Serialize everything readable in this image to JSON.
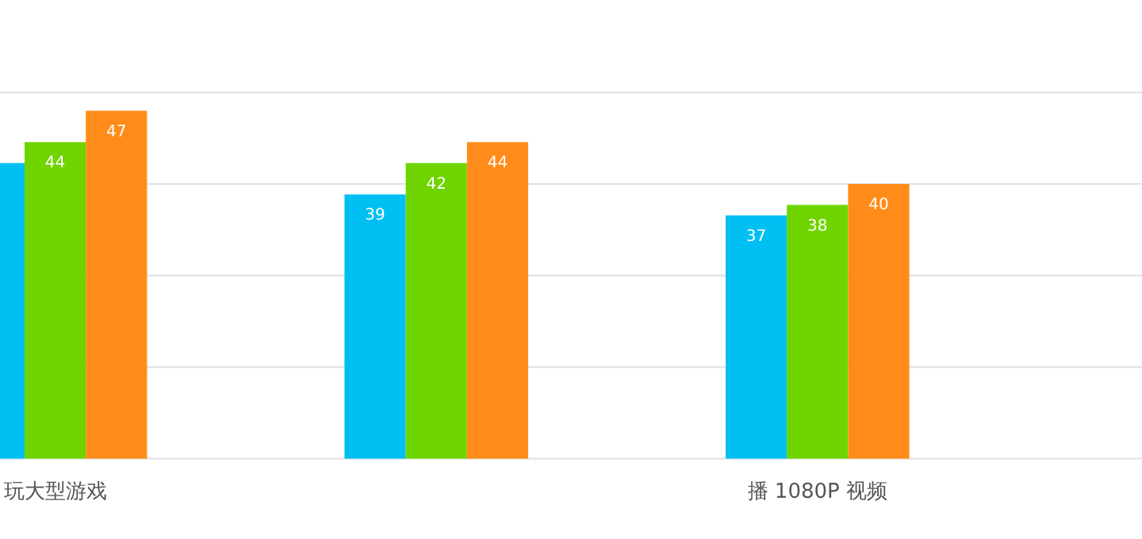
{
  "chart_data": {
    "type": "bar",
    "categories": [
      "玩大型游戏",
      null,
      "播 1080P 视频"
    ],
    "series": [
      {
        "color": "#00bff3",
        "values": [
          42,
          39,
          37
        ],
        "value_labels": [
          null,
          "39",
          "37"
        ]
      },
      {
        "color": "#6fd400",
        "values": [
          44,
          42,
          38
        ],
        "value_labels": [
          "44",
          "42",
          "38"
        ]
      },
      {
        "color": "#ff8c1a",
        "values": [
          47,
          44,
          40
        ],
        "value_labels": [
          "47",
          "44",
          "40"
        ]
      }
    ],
    "ylim": [
      13.75,
      48.75
    ],
    "yticks": [
      {
        "value": 13.75,
        "label": null
      },
      {
        "value": 22.5,
        "label": null
      },
      {
        "value": 31.25,
        "label": null
      },
      {
        "value": 40,
        "label": null
      },
      {
        "value": 48.75,
        "label": null
      }
    ],
    "grid": "y",
    "tick_labels": "x"
  }
}
